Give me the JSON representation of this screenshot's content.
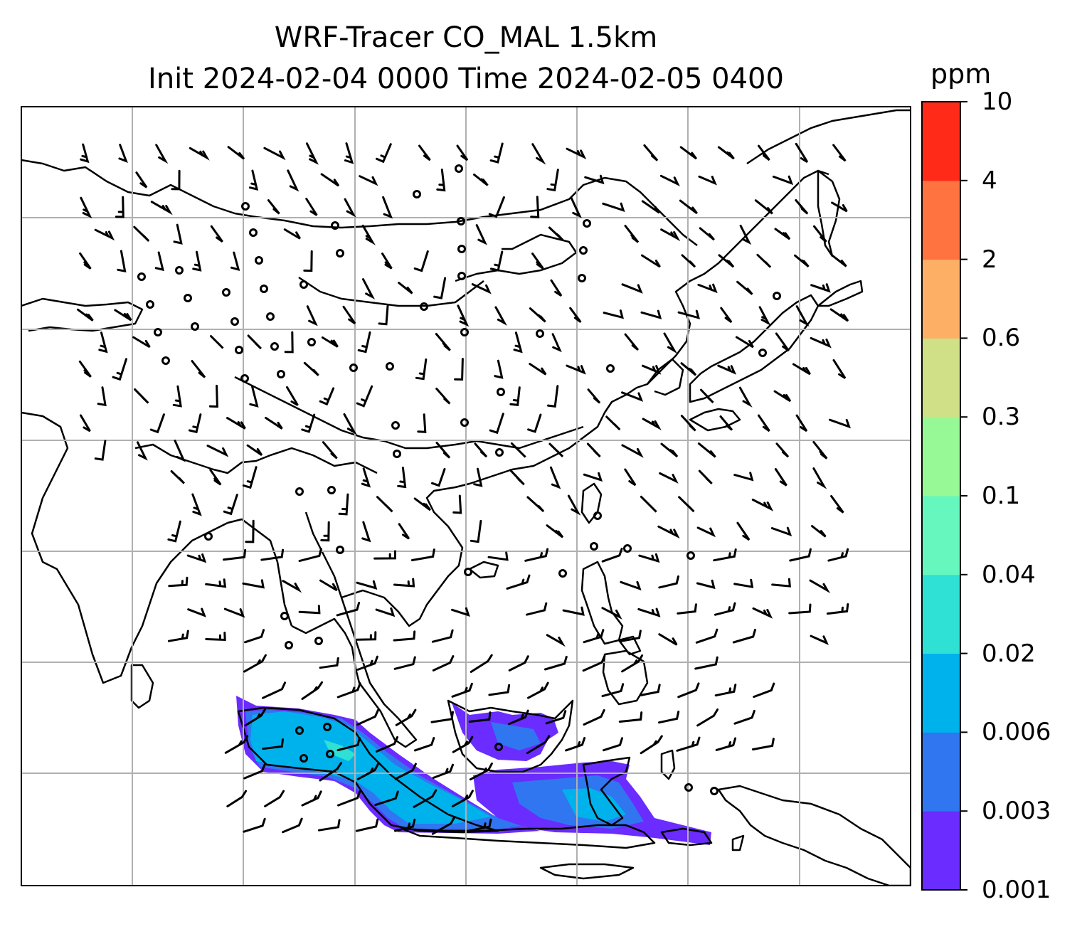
{
  "title": {
    "line1": "WRF-Tracer CO_MAL 1.5km",
    "line2": "Init 2024-02-04 0000 Time 2024-02-05 0400"
  },
  "colorbar": {
    "unit": "ppm",
    "levels": [
      "0.001",
      "0.003",
      "0.006",
      "0.02",
      "0.04",
      "0.1",
      "0.3",
      "0.6",
      "2",
      "4",
      "10"
    ],
    "colors": [
      "#6a2cff",
      "#3076f0",
      "#00b2ec",
      "#2fe0d4",
      "#66f7bf",
      "#97f996",
      "#cfe087",
      "#fdb065",
      "#ff7340",
      "#ff2a18"
    ]
  },
  "map": {
    "region": "South-East Asia",
    "gridlines": true,
    "wind_barbs": true,
    "tracer_shading_color_range": [
      "0.001",
      "0.04"
    ]
  }
}
